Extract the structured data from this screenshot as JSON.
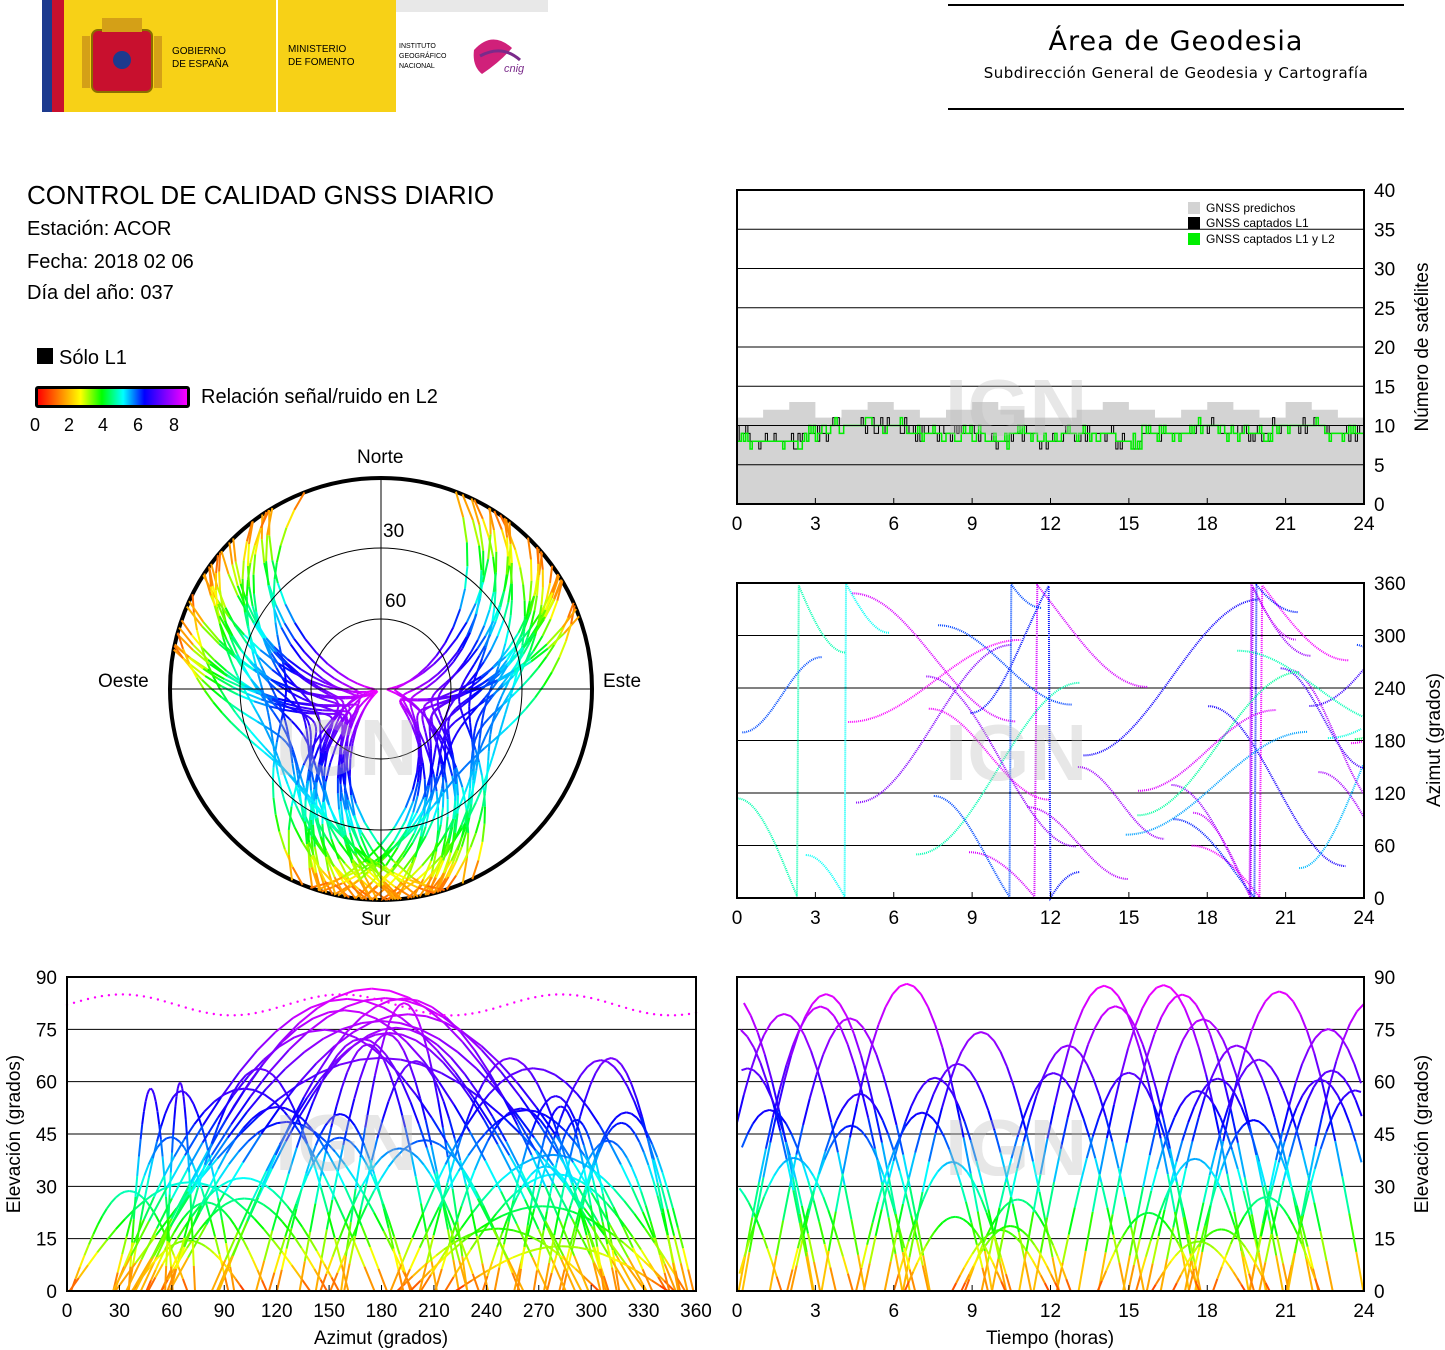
{
  "header": {
    "gov_line1": "GOBIERNO",
    "gov_line2": "DE ESPAÑA",
    "ministry_line1": "MINISTERIO",
    "ministry_line2": "DE FOMENTO",
    "ign_line1": "INSTITUTO",
    "ign_line2": "GEOGRÁFICO",
    "ign_line3": "NACIONAL",
    "cnig_logo_text": "cnig",
    "area_title": "Área de Geodesia",
    "area_subtitle": "Subdirección General de Geodesia y Cartografía",
    "colors": {
      "spain_red": "#c8102e",
      "spain_yellow": "#fcd100",
      "gov_yellow": "#f7d117",
      "eu_blue": "#1d3a8e"
    }
  },
  "report": {
    "title": "CONTROL DE CALIDAD GNSS DIARIO",
    "station": "Estación: ACOR",
    "date": "Fecha: 2018 02 06",
    "doy": "Día del año: 037"
  },
  "legend": {
    "only_l1": "Sólo L1",
    "snr_label": "Relación señal/ruido en L2",
    "snr_ticks": [
      "0",
      "2",
      "4",
      "6",
      "8"
    ],
    "colorscale": [
      "#ff0000",
      "#ff8000",
      "#ffff00",
      "#00ff00",
      "#00ffff",
      "#0000ff",
      "#8000ff",
      "#ff00ff"
    ]
  },
  "watermark": "IGN",
  "chart_data": [
    {
      "id": "skyplot",
      "type": "scatter",
      "title": "",
      "directions": {
        "north": "Norte",
        "south": "Sur",
        "east": "Este",
        "west": "Oeste"
      },
      "elevation_rings": [
        "30",
        "60"
      ],
      "note_values": "satellite tracks colored by L2 signal-to-noise ratio (0-8)"
    },
    {
      "id": "satellite-count",
      "type": "area",
      "x_range": [
        0,
        24
      ],
      "x_ticks": [
        "0",
        "3",
        "6",
        "9",
        "12",
        "15",
        "18",
        "21",
        "24"
      ],
      "y_range": [
        0,
        40
      ],
      "y_ticks": [
        "0",
        "5",
        "10",
        "15",
        "20",
        "25",
        "30",
        "35",
        "40"
      ],
      "ylabel": "Número de satélites",
      "legend": [
        "GNSS predichos",
        "GNSS captados L1",
        "GNSS captados L1 y L2"
      ],
      "legend_colors": [
        "#d3d3d3",
        "#000000",
        "#00ee00"
      ],
      "legend_position": "top-right",
      "series": [
        {
          "name": "GNSS predichos",
          "x": [
            0,
            1,
            2,
            3,
            4,
            5,
            6,
            7,
            8,
            9,
            10,
            11,
            12,
            13,
            14,
            15,
            16,
            17,
            18,
            19,
            20,
            21,
            22,
            23,
            24
          ],
          "values": [
            11,
            12,
            13,
            11,
            12,
            13,
            12,
            11,
            12,
            13,
            12,
            11,
            11,
            12,
            13,
            12,
            11,
            12,
            13,
            12,
            11,
            13,
            12,
            11,
            11
          ]
        },
        {
          "name": "GNSS captados L1",
          "x": [
            0,
            1,
            2,
            3,
            4,
            5,
            6,
            7,
            8,
            9,
            10,
            11,
            12,
            13,
            14,
            15,
            16,
            17,
            18,
            19,
            20,
            21,
            22,
            23,
            24
          ],
          "values": [
            9,
            8,
            8,
            9,
            10,
            10,
            10,
            9,
            9,
            9,
            8,
            9,
            8,
            9,
            9,
            8,
            9,
            9,
            10,
            9,
            9,
            10,
            10,
            9,
            9
          ]
        },
        {
          "name": "GNSS captados L1 y L2",
          "x": [
            0,
            1,
            2,
            3,
            4,
            5,
            6,
            7,
            8,
            9,
            10,
            11,
            12,
            13,
            14,
            15,
            16,
            17,
            18,
            19,
            20,
            21,
            22,
            23,
            24
          ],
          "values": [
            9,
            8,
            8,
            9,
            10,
            10,
            10,
            9,
            9,
            9,
            8,
            9,
            8,
            9,
            9,
            8,
            9,
            9,
            10,
            9,
            9,
            10,
            10,
            9,
            9
          ]
        }
      ]
    },
    {
      "id": "azimuth-time",
      "type": "scatter",
      "x_range": [
        0,
        24
      ],
      "x_ticks": [
        "0",
        "3",
        "6",
        "9",
        "12",
        "15",
        "18",
        "21",
        "24"
      ],
      "y_range": [
        0,
        360
      ],
      "y_ticks": [
        "0",
        "60",
        "120",
        "180",
        "240",
        "300",
        "360"
      ],
      "ylabel": "Azimut (grados)"
    },
    {
      "id": "elevation-azimuth",
      "type": "scatter",
      "x_range": [
        0,
        360
      ],
      "x_ticks": [
        "0",
        "30",
        "60",
        "90",
        "120",
        "150",
        "180",
        "210",
        "240",
        "270",
        "300",
        "330",
        "360"
      ],
      "y_range": [
        0,
        90
      ],
      "y_ticks": [
        "0",
        "15",
        "30",
        "45",
        "60",
        "75",
        "90"
      ],
      "xlabel": "Azimut (grados)",
      "ylabel": "Elevación (grados)"
    },
    {
      "id": "elevation-time",
      "type": "scatter",
      "x_range": [
        0,
        24
      ],
      "x_ticks": [
        "0",
        "3",
        "6",
        "9",
        "12",
        "15",
        "18",
        "21",
        "24"
      ],
      "y_range": [
        0,
        90
      ],
      "y_ticks": [
        "0",
        "15",
        "30",
        "45",
        "60",
        "75",
        "90"
      ],
      "xlabel": "Tiempo (horas)",
      "ylabel": "Elevación (grados)"
    }
  ]
}
